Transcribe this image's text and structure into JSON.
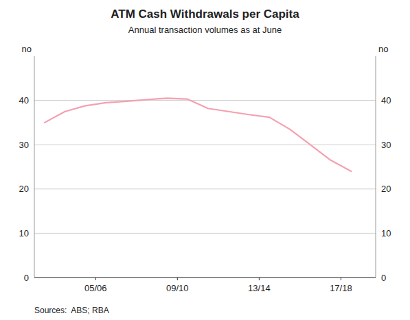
{
  "chart_data": {
    "type": "line",
    "title": "ATM Cash Withdrawals per Capita",
    "subtitle": "Annual transaction volumes as at June",
    "source": "Sources:  ABS; RBA",
    "y_label": "no",
    "y2_label": "no",
    "x": [
      2003,
      2004,
      2005,
      2006,
      2007,
      2008,
      2009,
      2010,
      2011,
      2012,
      2013,
      2014,
      2015,
      2016,
      2017,
      2018
    ],
    "values": [
      35.0,
      37.5,
      38.8,
      39.5,
      39.8,
      40.2,
      40.5,
      40.3,
      38.2,
      37.5,
      36.8,
      36.2,
      33.5,
      30.0,
      26.5,
      24.0
    ],
    "color": "#f4a0b0",
    "xlim": [
      2002.5,
      2019.2
    ],
    "xticks": [
      {
        "value": 2005.5,
        "label": "05/06"
      },
      {
        "value": 2009.5,
        "label": "09/10"
      },
      {
        "value": 2013.5,
        "label": "13/14"
      },
      {
        "value": 2017.5,
        "label": "17/18"
      }
    ],
    "ylim": [
      0,
      50
    ],
    "yticks": [
      0,
      10,
      20,
      30,
      40
    ],
    "y2lim": [
      0,
      50
    ],
    "y2ticks": [
      0,
      10,
      20,
      30,
      40
    ],
    "grid": true
  }
}
